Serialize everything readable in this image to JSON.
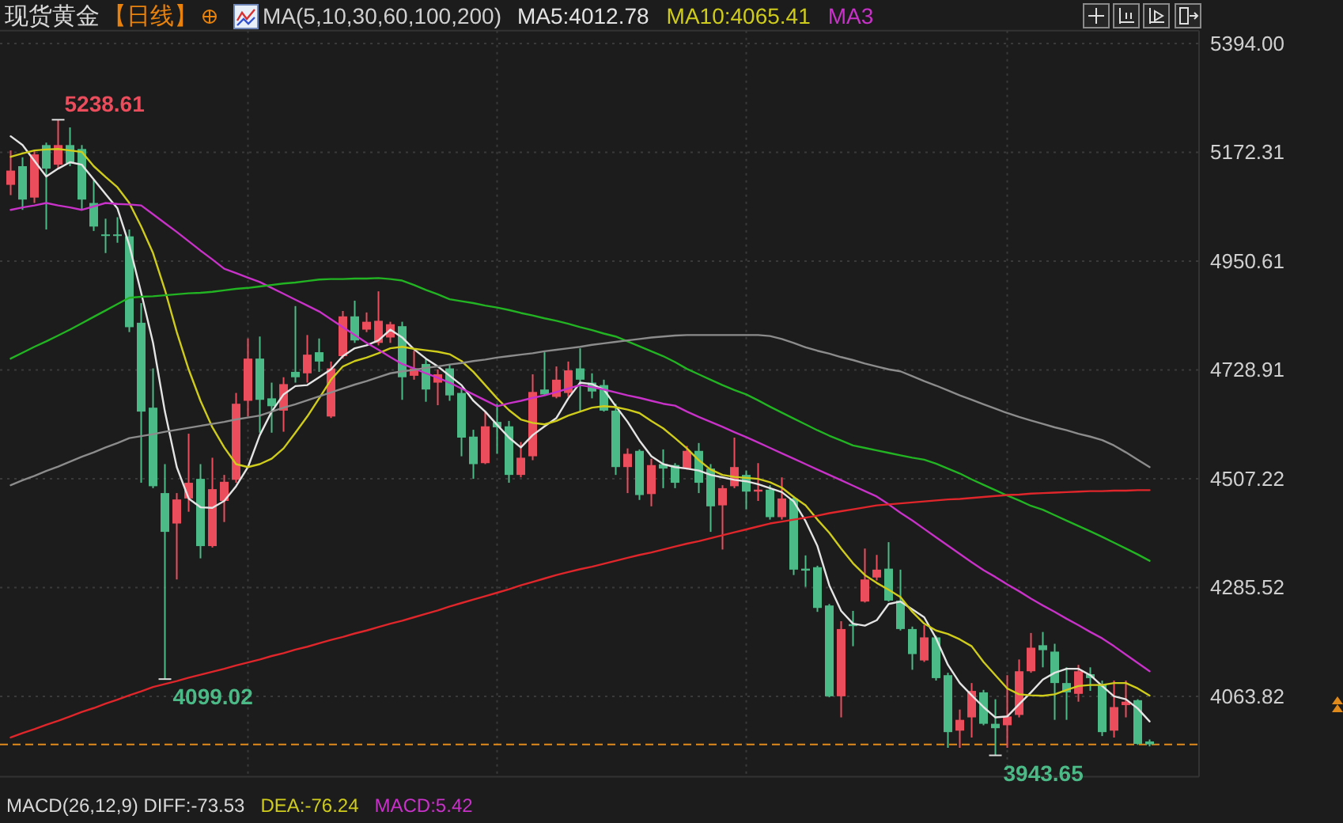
{
  "chart_data": {
    "type": "candlestick",
    "title": "现货黄金",
    "subtitle": "【日线】",
    "legend_title": "MA(5,10,30,60,100,200)",
    "legend": "top",
    "categories": [
      null,
      null,
      null,
      null,
      null,
      null,
      null,
      null,
      null,
      null,
      null,
      null,
      null,
      null,
      null,
      null,
      null,
      null,
      null,
      null,
      null,
      null,
      null,
      null,
      null,
      null,
      null,
      null,
      null,
      null,
      null,
      null,
      null,
      null,
      null,
      null,
      null,
      null,
      null,
      null,
      null,
      null,
      null,
      null,
      null,
      null,
      null,
      null,
      null,
      null,
      null,
      null,
      null,
      null,
      null,
      null,
      null,
      null,
      null,
      null,
      null,
      null,
      null,
      null,
      null,
      null,
      null,
      null,
      null,
      null,
      null,
      null,
      null,
      null,
      null,
      null,
      null,
      null,
      null,
      null,
      null,
      null,
      null,
      null,
      null,
      null,
      null,
      null,
      null,
      null,
      null,
      null,
      null,
      null,
      null,
      null,
      null
    ],
    "ohlc": [
      [
        5106,
        5176,
        5085,
        5135
      ],
      [
        5144,
        5162,
        5055,
        5076
      ],
      [
        5080,
        5176,
        5069,
        5168
      ],
      [
        5187,
        5192,
        5015,
        5139
      ],
      [
        5147,
        5238.61,
        5139,
        5187
      ],
      [
        5187,
        5223,
        5144,
        5150
      ],
      [
        5179,
        5187,
        5055,
        5076
      ],
      [
        5069,
        5117,
        5012,
        5021
      ],
      [
        5005,
        5037,
        4967,
        5003
      ],
      [
        5005,
        5040,
        4988,
        5003
      ],
      [
        5001,
        5015,
        4806,
        4816
      ],
      [
        4825,
        4865,
        4499,
        4644
      ],
      [
        4652,
        4732,
        4488,
        4492
      ],
      [
        4478,
        4537,
        4099.02,
        4399
      ],
      [
        4416,
        4478,
        4302,
        4465
      ],
      [
        4467,
        4599,
        4440,
        4499
      ],
      [
        4507,
        4537,
        4345,
        4370
      ],
      [
        4370,
        4550,
        4367,
        4486
      ],
      [
        4462,
        4515,
        4419,
        4501
      ],
      [
        4505,
        4682,
        4499,
        4660
      ],
      [
        4666,
        4793,
        4634,
        4752
      ],
      [
        4752,
        4797,
        4601,
        4668
      ],
      [
        4671,
        4703,
        4601,
        4655
      ],
      [
        4646,
        4714,
        4603,
        4700
      ],
      [
        4725,
        4859,
        4703,
        4714
      ],
      [
        4722,
        4800,
        4703,
        4760
      ],
      [
        4765,
        4793,
        4725,
        4746
      ],
      [
        4634,
        4746,
        4631,
        4732
      ],
      [
        4757,
        4849,
        4752,
        4838
      ],
      [
        4838,
        4870,
        4784,
        4789
      ],
      [
        4811,
        4846,
        4806,
        4827
      ],
      [
        4784,
        4889,
        4779,
        4829
      ],
      [
        4795,
        4827,
        4784,
        4822
      ],
      [
        4818,
        4827,
        4668,
        4714
      ],
      [
        4717,
        4768,
        4709,
        4732
      ],
      [
        4741,
        4752,
        4664,
        4689
      ],
      [
        4703,
        4730,
        4657,
        4720
      ],
      [
        4732,
        4741,
        4666,
        4677
      ],
      [
        4682,
        4693,
        4553,
        4591
      ],
      [
        4593,
        4607,
        4507,
        4537
      ],
      [
        4539,
        4644,
        4537,
        4614
      ],
      [
        4623,
        4660,
        4558,
        4612
      ],
      [
        4614,
        4625,
        4499,
        4515
      ],
      [
        4515,
        4582,
        4510,
        4550
      ],
      [
        4553,
        4720,
        4545,
        4684
      ],
      [
        4689,
        4765,
        4677,
        4679
      ],
      [
        4674,
        4736,
        4671,
        4709
      ],
      [
        4682,
        4746,
        4674,
        4728
      ],
      [
        4732,
        4773,
        4644,
        4709
      ],
      [
        4703,
        4722,
        4671,
        4685
      ],
      [
        4698,
        4709,
        4644,
        4646
      ],
      [
        4646,
        4660,
        4515,
        4531
      ],
      [
        4531,
        4569,
        4478,
        4558
      ],
      [
        4564,
        4567,
        4464,
        4474
      ],
      [
        4476,
        4548,
        4451,
        4535
      ],
      [
        4537,
        4567,
        4488,
        4528
      ],
      [
        4535,
        4539,
        4488,
        4499
      ],
      [
        4528,
        4574,
        4526,
        4564
      ],
      [
        4564,
        4580,
        4478,
        4499
      ],
      [
        4528,
        4537,
        4399,
        4451
      ],
      [
        4453,
        4494,
        4363,
        4488
      ],
      [
        4492,
        4591,
        4488,
        4531
      ],
      [
        4515,
        4524,
        4445,
        4481
      ],
      [
        4481,
        4539,
        4462,
        4485
      ],
      [
        4485,
        4494,
        4424,
        4429
      ],
      [
        4429,
        4510,
        4424,
        4467
      ],
      [
        4467,
        4472,
        4311,
        4322
      ],
      [
        4324,
        4351,
        4287,
        4320
      ],
      [
        4327,
        4330,
        4236,
        4244
      ],
      [
        4249,
        4252,
        4062,
        4064
      ],
      [
        4064,
        4217,
        4021,
        4201
      ],
      [
        4211,
        4238,
        4166,
        4207
      ],
      [
        4257,
        4365,
        4255,
        4302
      ],
      [
        4306,
        4352,
        4300,
        4322
      ],
      [
        4324,
        4378,
        4257,
        4259
      ],
      [
        4259,
        4322,
        4198,
        4201
      ],
      [
        4201,
        4206,
        4118,
        4150
      ],
      [
        4137,
        4209,
        4134,
        4184
      ],
      [
        4184,
        4187,
        4096,
        4101
      ],
      [
        4107,
        4112,
        3959,
        3991
      ],
      [
        3994,
        4037,
        3959,
        4016
      ],
      [
        4021,
        4091,
        3980,
        4075
      ],
      [
        4072,
        4077,
        4005,
        4008
      ],
      [
        4008,
        4058,
        3943.65,
        3999
      ],
      [
        4005,
        4107,
        3959,
        4023
      ],
      [
        4026,
        4139,
        4021,
        4115
      ],
      [
        4115,
        4193,
        4112,
        4163
      ],
      [
        4168,
        4195,
        4123,
        4158
      ],
      [
        4155,
        4171,
        4016,
        4091
      ],
      [
        4091,
        4123,
        4016,
        4072
      ],
      [
        4069,
        4128,
        4053,
        4115
      ],
      [
        4109,
        4123,
        4075,
        4101
      ],
      [
        4088,
        4096,
        3983,
        3991
      ],
      [
        3994,
        4096,
        3980,
        4042
      ],
      [
        4046,
        4096,
        4021,
        4053
      ],
      [
        4056,
        4058,
        3965,
        3967
      ],
      [
        3972,
        3976,
        3962,
        3966
      ]
    ],
    "colors": [
      "#eb4d5c",
      "#4cba87",
      "#eb4d5c",
      "#4cba87",
      "#eb4d5c",
      "#4cba87",
      "#4cba87",
      "#4cba87",
      "#4cba87",
      "#4cba87",
      "#4cba87",
      "#4cba87",
      "#4cba87",
      "#4cba87",
      "#eb4d5c",
      "#eb4d5c",
      "#4cba87",
      "#eb4d5c",
      "#eb4d5c",
      "#eb4d5c",
      "#eb4d5c",
      "#4cba87",
      "#4cba87",
      "#eb4d5c",
      "#4cba87",
      "#eb4d5c",
      "#4cba87",
      "#eb4d5c",
      "#eb4d5c",
      "#4cba87",
      "#eb4d5c",
      "#eb4d5c",
      "#eb4d5c",
      "#4cba87",
      "#eb4d5c",
      "#4cba87",
      "#eb4d5c",
      "#4cba87",
      "#4cba87",
      "#4cba87",
      "#eb4d5c",
      "#4cba87",
      "#4cba87",
      "#eb4d5c",
      "#eb4d5c",
      "#4cba87",
      "#eb4d5c",
      "#eb4d5c",
      "#4cba87",
      "#4cba87",
      "#4cba87",
      "#4cba87",
      "#eb4d5c",
      "#4cba87",
      "#eb4d5c",
      "#4cba87",
      "#4cba87",
      "#eb4d5c",
      "#4cba87",
      "#4cba87",
      "#eb4d5c",
      "#eb4d5c",
      "#4cba87",
      "#eb4d5c",
      "#4cba87",
      "#eb4d5c",
      "#4cba87",
      "#4cba87",
      "#4cba87",
      "#4cba87",
      "#eb4d5c",
      "#4cba87",
      "#eb4d5c",
      "#eb4d5c",
      "#4cba87",
      "#4cba87",
      "#4cba87",
      "#eb4d5c",
      "#4cba87",
      "#4cba87",
      "#eb4d5c",
      "#eb4d5c",
      "#4cba87",
      "#4cba87",
      "#eb4d5c",
      "#eb4d5c",
      "#eb4d5c",
      "#4cba87",
      "#4cba87",
      "#4cba87",
      "#eb4d5c",
      "#4cba87",
      "#4cba87",
      "#eb4d5c",
      "#eb4d5c",
      "#4cba87",
      "#4cba87"
    ],
    "series": [
      {
        "type": "line",
        "name": "MA5:4012.78",
        "color": "#e4e4e4",
        "values": [
          5205,
          5187,
          5155,
          5123,
          5139,
          5152,
          5147,
          5117,
          5087,
          5058,
          4983,
          4886,
          4784,
          4644,
          4531,
          4467,
          4449,
          4448,
          4462,
          4492,
          4531,
          4596,
          4644,
          4679,
          4696,
          4698,
          4714,
          4730,
          4757,
          4773,
          4779,
          4789,
          4811,
          4795,
          4771,
          4752,
          4736,
          4717,
          4698,
          4666,
          4644,
          4617,
          4591,
          4571,
          4596,
          4614,
          4631,
          4671,
          4703,
          4700,
          4689,
          4655,
          4623,
          4585,
          4553,
          4537,
          4531,
          4528,
          4524,
          4515,
          4510,
          4505,
          4502,
          4496,
          4488,
          4480,
          4461,
          4421,
          4370,
          4290,
          4238,
          4212,
          4208,
          4219,
          4252,
          4257,
          4241,
          4225,
          4182,
          4128,
          4091,
          4066,
          4042,
          4021,
          4023,
          4048,
          4072,
          4098,
          4112,
          4120,
          4120,
          4107,
          4085,
          4064,
          4058,
          4039,
          4012.78
        ]
      },
      {
        "type": "line",
        "name": "MA10:4065.41",
        "color": "#cfcc1c",
        "values": [
          5163,
          5170,
          5176,
          5178,
          5179,
          5176,
          5173,
          5144,
          5122,
          5101,
          5069,
          5021,
          4967,
          4892,
          4806,
          4730,
          4666,
          4612,
          4571,
          4537,
          4531,
          4537,
          4548,
          4569,
          4601,
          4634,
          4671,
          4709,
          4736,
          4747,
          4754,
          4763,
          4773,
          4776,
          4772,
          4769,
          4766,
          4761,
          4747,
          4725,
          4698,
          4671,
          4647,
          4628,
          4621,
          4618,
          4625,
          4636,
          4644,
          4652,
          4655,
          4653,
          4648,
          4641,
          4625,
          4610,
          4590,
          4569,
          4545,
          4526,
          4515,
          4511,
          4509,
          4507,
          4500,
          4489,
          4470,
          4453,
          4424,
          4397,
          4365,
          4335,
          4311,
          4295,
          4281,
          4266,
          4236,
          4212,
          4198,
          4191,
          4180,
          4166,
          4134,
          4107,
          4080,
          4068,
          4066,
          4065,
          4068,
          4077,
          4085,
          4087,
          4087,
          4091,
          4091,
          4080,
          4065.41
        ]
      },
      {
        "type": "line",
        "name": "MA3",
        "color": "#c832c8",
        "values": [
          5055,
          5060,
          5064,
          5069,
          5064,
          5060,
          5055,
          5062,
          5069,
          5067,
          5066,
          5064,
          5046,
          5028,
          5010,
          4991,
          4972,
          4954,
          4935,
          4926,
          4917,
          4908,
          4896,
          4884,
          4872,
          4860,
          4848,
          4832,
          4816,
          4800,
          4784,
          4770,
          4755,
          4741,
          4732,
          4722,
          4713,
          4703,
          4691,
          4679,
          4667,
          4655,
          4661,
          4666,
          4672,
          4677,
          4684,
          4691,
          4698,
          4694,
          4689,
          4683,
          4677,
          4672,
          4666,
          4660,
          4656,
          4644,
          4633,
          4623,
          4613,
          4602,
          4592,
          4581,
          4570,
          4559,
          4548,
          4537,
          4526,
          4515,
          4504,
          4493,
          4482,
          4471,
          4455,
          4438,
          4422,
          4405,
          4388,
          4371,
          4354,
          4337,
          4321,
          4307,
          4292,
          4278,
          4263,
          4249,
          4236,
          4222,
          4209,
          4195,
          4182,
          4166,
          4149,
          4132,
          4115
        ]
      },
      {
        "type": "line",
        "color": "#22b422",
        "values": [
          4752,
          4764,
          4776,
          4787,
          4799,
          4811,
          4824,
          4837,
          4850,
          4863,
          4876,
          4878,
          4879,
          4881,
          4883,
          4885,
          4886,
          4888,
          4891,
          4894,
          4896,
          4899,
          4902,
          4905,
          4907,
          4910,
          4913,
          4914,
          4914,
          4915,
          4915,
          4916,
          4914,
          4911,
          4902,
          4892,
          4883,
          4873,
          4869,
          4865,
          4860,
          4856,
          4851,
          4845,
          4840,
          4834,
          4829,
          4823,
          4816,
          4810,
          4803,
          4797,
          4787,
          4777,
          4767,
          4757,
          4745,
          4731,
          4720,
          4709,
          4698,
          4688,
          4679,
          4667,
          4654,
          4642,
          4630,
          4618,
          4606,
          4595,
          4585,
          4575,
          4570,
          4565,
          4560,
          4555,
          4550,
          4546,
          4538,
          4528,
          4518,
          4506,
          4495,
          4484,
          4473,
          4463,
          4452,
          4444,
          4433,
          4422,
          4411,
          4400,
          4389,
          4377,
          4365,
          4353,
          4340
        ]
      },
      {
        "type": "line",
        "color": "#8c8c8c",
        "values": [
          4494,
          4504,
          4513,
          4523,
          4532,
          4542,
          4552,
          4561,
          4571,
          4580,
          4590,
          4594,
          4598,
          4603,
          4607,
          4611,
          4615,
          4619,
          4623,
          4628,
          4632,
          4636,
          4644,
          4652,
          4659,
          4667,
          4675,
          4683,
          4691,
          4699,
          4706,
          4714,
          4722,
          4726,
          4729,
          4733,
          4736,
          4740,
          4743,
          4747,
          4750,
          4754,
          4757,
          4760,
          4763,
          4767,
          4770,
          4773,
          4776,
          4780,
          4783,
          4786,
          4789,
          4792,
          4795,
          4797,
          4799,
          4800,
          4800,
          4800,
          4800,
          4800,
          4800,
          4800,
          4798,
          4792,
          4784,
          4775,
          4768,
          4762,
          4755,
          4749,
          4742,
          4736,
          4730,
          4726,
          4716,
          4706,
          4697,
          4687,
          4677,
          4668,
          4659,
          4650,
          4641,
          4633,
          4626,
          4619,
          4612,
          4606,
          4599,
          4593,
          4586,
          4575,
          4561,
          4546,
          4531
        ]
      },
      {
        "type": "line",
        "color": "#e0262a",
        "values": [
          3980,
          3989,
          3997,
          4006,
          4014,
          4023,
          4032,
          4040,
          4049,
          4057,
          4066,
          4074,
          4083,
          4089,
          4095,
          4102,
          4108,
          4114,
          4120,
          4127,
          4133,
          4139,
          4146,
          4152,
          4159,
          4165,
          4172,
          4179,
          4185,
          4192,
          4198,
          4205,
          4212,
          4218,
          4225,
          4232,
          4239,
          4247,
          4254,
          4261,
          4268,
          4275,
          4282,
          4290,
          4297,
          4304,
          4311,
          4317,
          4323,
          4328,
          4334,
          4340,
          4346,
          4352,
          4357,
          4363,
          4369,
          4375,
          4380,
          4386,
          4392,
          4398,
          4404,
          4410,
          4416,
          4420,
          4424,
          4428,
          4432,
          4437,
          4441,
          4445,
          4449,
          4453,
          4455,
          4457,
          4459,
          4461,
          4463,
          4465,
          4466,
          4468,
          4470,
          4472,
          4474,
          4475,
          4477,
          4478,
          4479,
          4480,
          4481,
          4482,
          4482,
          4483,
          4483,
          4484,
          4484
        ]
      }
    ],
    "ylim": [
      3900,
      5420
    ],
    "yticks": [
      {
        "value": 5394,
        "label": "5394.00"
      },
      {
        "value": 5172.31,
        "label": "5172.31"
      },
      {
        "value": 4950.61,
        "label": "4950.61"
      },
      {
        "value": 4728.91,
        "label": "4728.91"
      },
      {
        "value": 4507.22,
        "label": "4507.22"
      },
      {
        "value": 4285.52,
        "label": "4285.52"
      },
      {
        "value": 4063.82,
        "label": "4063.82"
      }
    ],
    "tick_labels": "y",
    "grid": true,
    "ref_lines": [
      {
        "axis": "y",
        "value": 3966,
        "color": "#e08a1c",
        "line_style": "dashed"
      }
    ],
    "annotations": [
      "5238.61",
      {
        "text": "4099.02",
        "y": 4099.02
      },
      "3943.65",
      "MACD(26,12,9) DIFF:-73.53",
      "DEA:-76.24",
      "MACD:5.42"
    ]
  }
}
